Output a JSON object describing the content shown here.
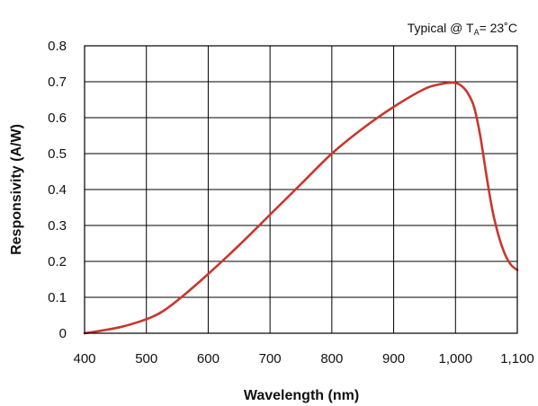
{
  "chart_data": {
    "type": "line",
    "title": "",
    "annotation": {
      "prefix": "Typical @ T",
      "subscript": "A",
      "suffix": "= 23˚C"
    },
    "xlabel": "Wavelength (nm)",
    "ylabel": "Responsivity (A/W)",
    "xlim": [
      400,
      1100
    ],
    "ylim": [
      0,
      0.8
    ],
    "x_ticks": [
      400,
      500,
      600,
      700,
      800,
      900,
      1000,
      1100
    ],
    "x_tick_labels": [
      "400",
      "500",
      "600",
      "700",
      "800",
      "900",
      "1,000",
      "1,100"
    ],
    "y_ticks": [
      0,
      0.1,
      0.2,
      0.3,
      0.4,
      0.5,
      0.6,
      0.7,
      0.8
    ],
    "y_tick_labels": [
      "0",
      "0.1",
      "0.2",
      "0.3",
      "0.4",
      "0.5",
      "0.6",
      "0.7",
      "0.8"
    ],
    "grid": true,
    "series": [
      {
        "color": "#c8372d",
        "x": [
          400,
          430,
          460,
          490,
          510,
          530,
          560,
          600,
          650,
          700,
          750,
          800,
          850,
          900,
          950,
          975,
          990,
          1000,
          1010,
          1020,
          1030,
          1040,
          1050,
          1060,
          1070,
          1080,
          1090,
          1100
        ],
        "y": [
          0.0,
          0.008,
          0.018,
          0.033,
          0.046,
          0.065,
          0.105,
          0.165,
          0.245,
          0.33,
          0.415,
          0.5,
          0.57,
          0.63,
          0.68,
          0.693,
          0.697,
          0.697,
          0.688,
          0.668,
          0.63,
          0.55,
          0.44,
          0.34,
          0.27,
          0.22,
          0.19,
          0.176
        ]
      }
    ]
  }
}
